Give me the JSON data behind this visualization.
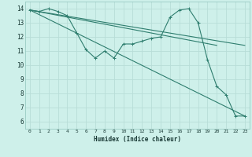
{
  "xlabel": "Humidex (Indice chaleur)",
  "bg_color": "#cef0ea",
  "line_color": "#2e7d6e",
  "grid_color": "#b8ddd8",
  "xlim": [
    -0.5,
    23.5
  ],
  "ylim": [
    5.5,
    14.5
  ],
  "yticks": [
    6,
    7,
    8,
    9,
    10,
    11,
    12,
    13,
    14
  ],
  "xticks": [
    0,
    1,
    2,
    3,
    4,
    5,
    6,
    7,
    8,
    9,
    10,
    11,
    12,
    13,
    14,
    15,
    16,
    17,
    18,
    19,
    20,
    21,
    22,
    23
  ],
  "series_wiggly": {
    "x": [
      0,
      1,
      2,
      3,
      4,
      5,
      6,
      7,
      8,
      9,
      10,
      11,
      12,
      13,
      14,
      15,
      16,
      17,
      18,
      19,
      20,
      21,
      22,
      23
    ],
    "y": [
      13.9,
      13.8,
      14.0,
      13.8,
      13.5,
      12.3,
      11.1,
      10.5,
      11.0,
      10.5,
      11.5,
      11.5,
      11.7,
      11.9,
      12.0,
      13.4,
      13.9,
      14.0,
      13.0,
      10.4,
      8.5,
      7.9,
      6.4,
      6.4
    ]
  },
  "series_line1": {
    "x": [
      0,
      23
    ],
    "y": [
      13.9,
      6.4
    ]
  },
  "series_line2": {
    "x": [
      0,
      23
    ],
    "y": [
      13.9,
      11.4
    ]
  },
  "series_line3": {
    "x": [
      0,
      20
    ],
    "y": [
      13.9,
      11.4
    ]
  }
}
